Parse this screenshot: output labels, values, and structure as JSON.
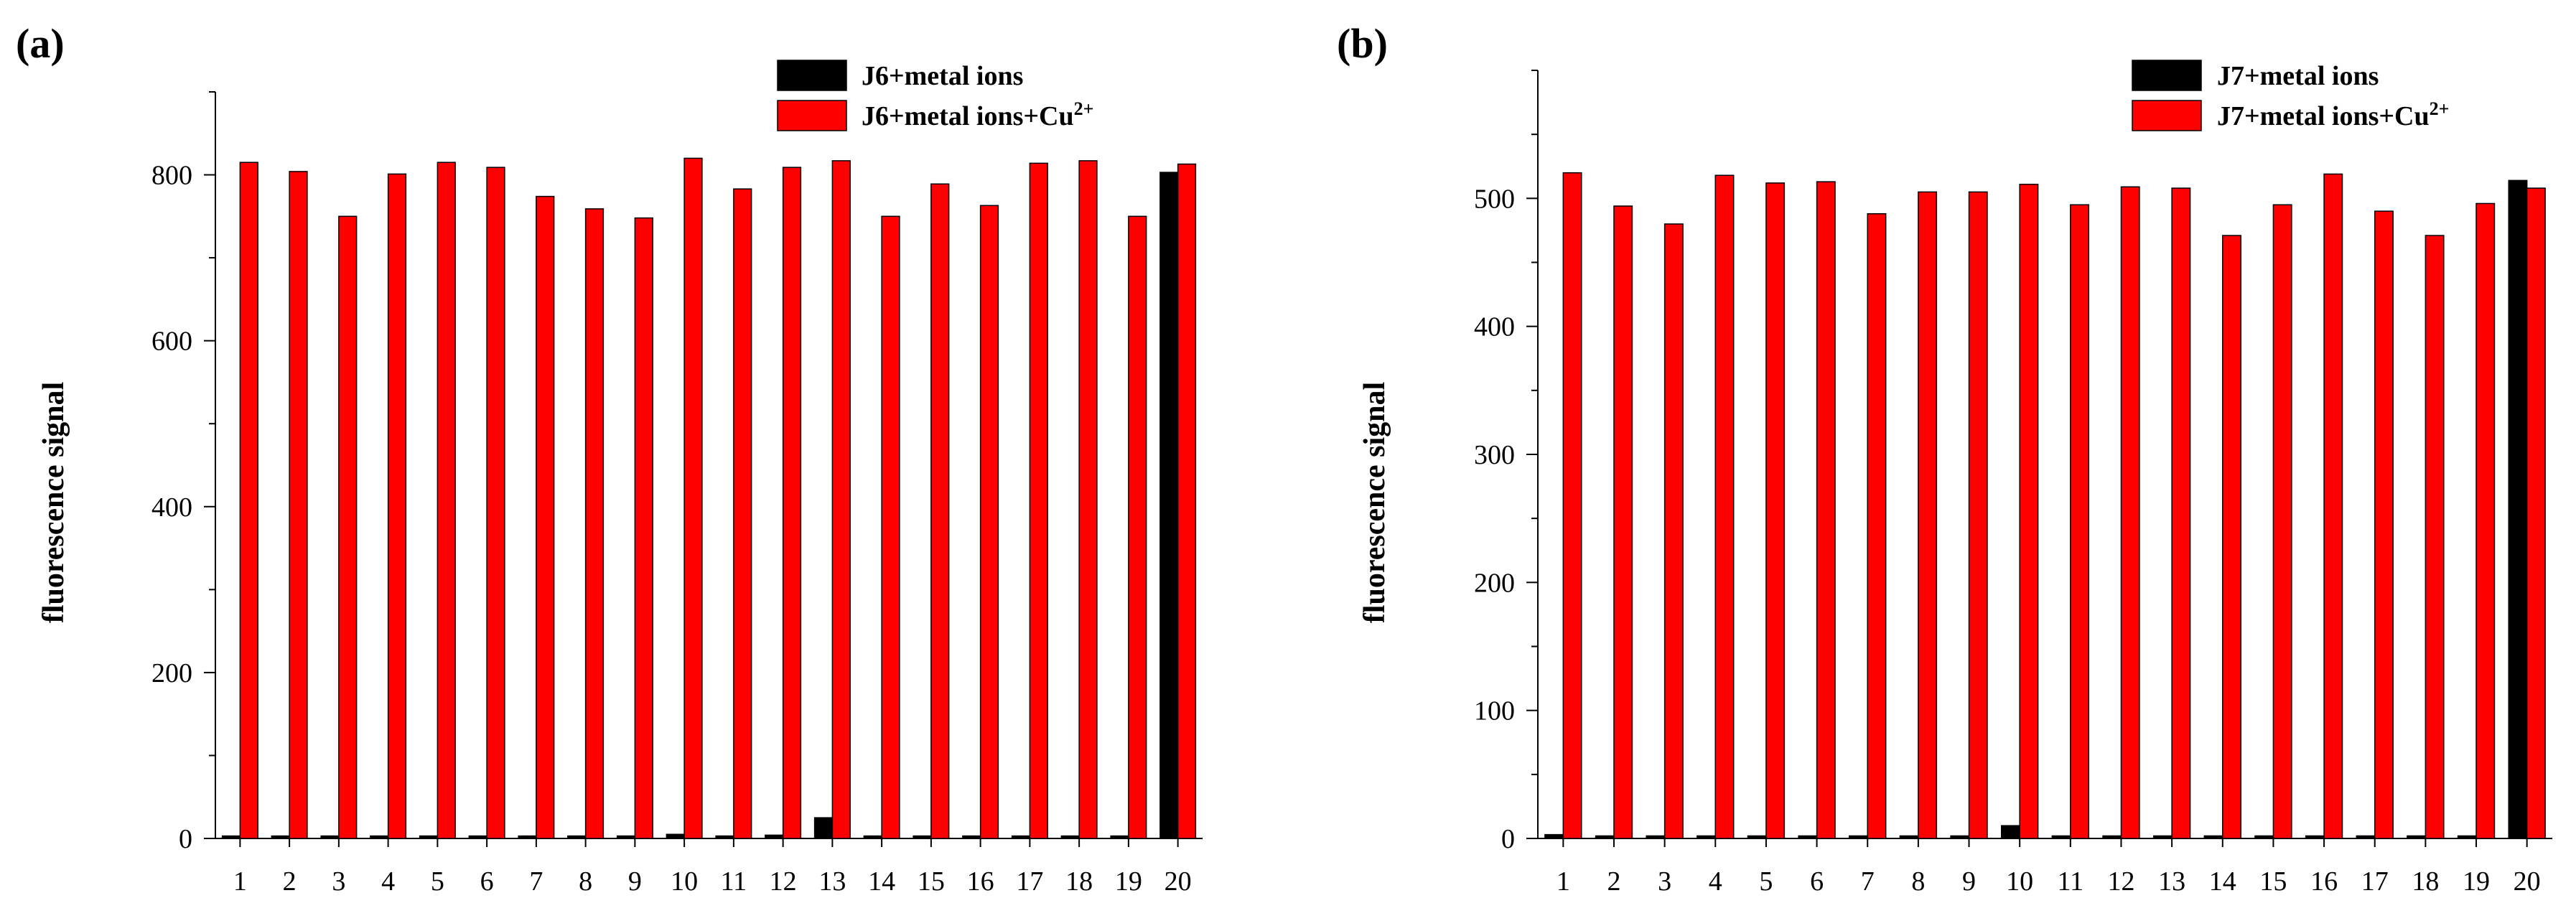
{
  "chart_data": [
    {
      "id": "a",
      "panel_label": "(a)",
      "type": "bar",
      "ylabel": "fluorescence signal",
      "xlabel": "",
      "ylim": [
        0,
        900
      ],
      "yticks": [
        0,
        200,
        400,
        600,
        800
      ],
      "categories": [
        "1",
        "2",
        "3",
        "4",
        "5",
        "6",
        "7",
        "8",
        "9",
        "10",
        "11",
        "12",
        "13",
        "14",
        "15",
        "16",
        "17",
        "18",
        "19",
        "20"
      ],
      "legend_position": "top-right",
      "series": [
        {
          "name": "J6+metal ions",
          "color": "#000000",
          "values": [
            3,
            3,
            3,
            3,
            3,
            3,
            3,
            3,
            3,
            5,
            3,
            4,
            25,
            3,
            3,
            3,
            3,
            3,
            3,
            803
          ]
        },
        {
          "name": "J6+metal ions+Cu",
          "superscript": "2+",
          "color": "#ff0000",
          "values": [
            815,
            804,
            750,
            801,
            815,
            809,
            774,
            759,
            748,
            820,
            783,
            809,
            817,
            750,
            789,
            763,
            814,
            817,
            750,
            813
          ]
        }
      ]
    },
    {
      "id": "b",
      "panel_label": "(b)",
      "type": "bar",
      "ylabel": "fluorescence signal",
      "xlabel": "",
      "ylim": [
        0,
        600
      ],
      "yticks": [
        0,
        100,
        200,
        300,
        400,
        500
      ],
      "categories": [
        "1",
        "2",
        "3",
        "4",
        "5",
        "6",
        "7",
        "8",
        "9",
        "10",
        "11",
        "12",
        "13",
        "14",
        "15",
        "16",
        "17",
        "18",
        "19",
        "20"
      ],
      "legend_position": "top-right",
      "series": [
        {
          "name": "J7+metal ions",
          "color": "#000000",
          "values": [
            3,
            2,
            2,
            2,
            2,
            2,
            2,
            2,
            2,
            10,
            2,
            2,
            2,
            2,
            2,
            2,
            2,
            2,
            2,
            514
          ]
        },
        {
          "name": "J7+metal ions+Cu",
          "superscript": "2+",
          "color": "#ff0000",
          "values": [
            520,
            494,
            480,
            518,
            512,
            513,
            488,
            505,
            505,
            511,
            495,
            509,
            508,
            471,
            495,
            519,
            490,
            471,
            496,
            508
          ]
        }
      ]
    }
  ]
}
